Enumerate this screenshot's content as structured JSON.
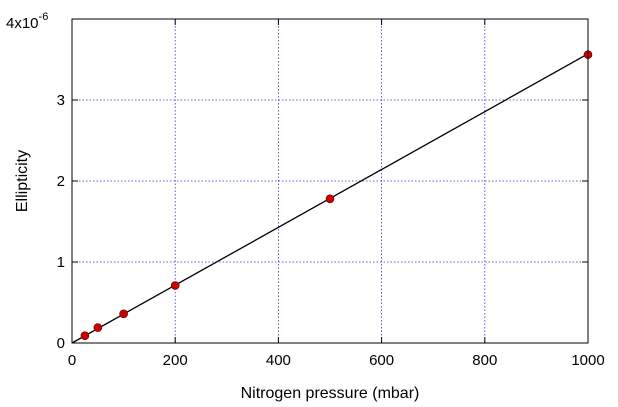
{
  "chart_data": {
    "type": "scatter",
    "title": "",
    "xlabel": "Nitrogen pressure (mbar)",
    "ylabel": "Ellipticity",
    "xlim": [
      0,
      1000
    ],
    "ylim": [
      0,
      4e-06
    ],
    "x_ticks": [
      0,
      200,
      400,
      600,
      800,
      1000
    ],
    "x_tick_labels": [
      "0",
      "200",
      "400",
      "600",
      "800",
      "1000"
    ],
    "y_ticks": [
      0,
      1e-06,
      2e-06,
      3e-06,
      4e-06
    ],
    "y_tick_labels": [
      "0",
      "1",
      "2",
      "3",
      ""
    ],
    "y_multiplier": {
      "base": "4x10",
      "exponent": "-6"
    },
    "grid": true,
    "legend": "none",
    "series": [
      {
        "x": [
          25,
          50,
          100,
          200,
          500,
          1000
        ],
        "y": [
          9e-08,
          1.9e-07,
          3.6e-07,
          7.1e-07,
          1.78e-06,
          3.56e-06
        ],
        "marker_color": "#cc0000"
      }
    ],
    "fit_line": {
      "x": [
        0,
        1000
      ],
      "y": [
        0,
        3.57e-06
      ],
      "color": "#000000"
    },
    "grid_color": "#3333cc"
  }
}
